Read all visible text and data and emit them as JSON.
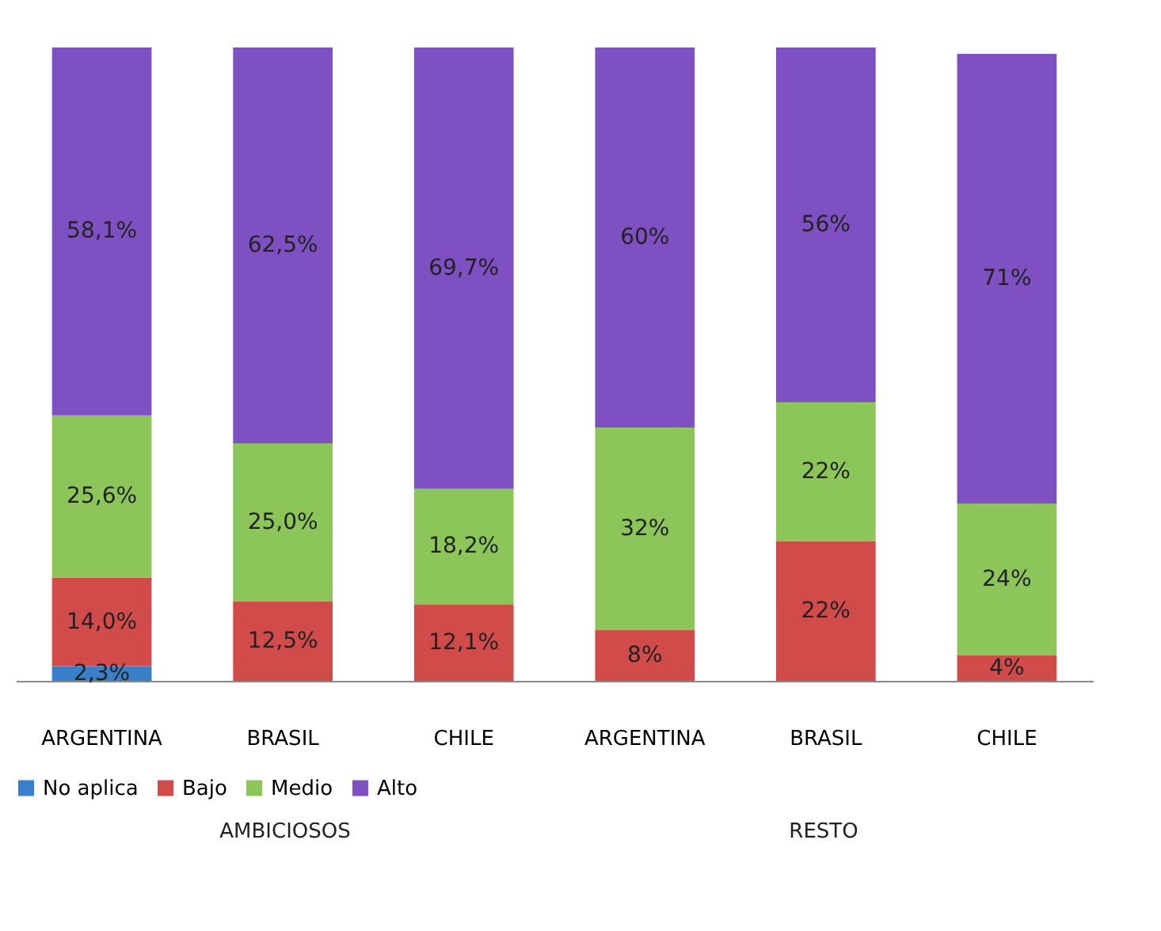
{
  "chart_data": {
    "type": "bar",
    "stacked": true,
    "grid": false,
    "legend": "bottom",
    "categories": [
      "ARGENTINA",
      "BRASIL",
      "CHILE",
      "ARGENTINA",
      "BRASIL",
      "CHILE"
    ],
    "annotations": [
      "AMBICIOSOS",
      "RESTO"
    ],
    "series": [
      {
        "name": "No aplica",
        "color": "#3a80c8",
        "values": [
          2.3,
          null,
          null,
          null,
          null,
          null
        ],
        "value_labels": [
          "2,3%",
          null,
          null,
          null,
          null,
          null
        ]
      },
      {
        "name": "Bajo",
        "color": "#d24b4b",
        "values": [
          14.0,
          12.5,
          12.1,
          8,
          22,
          4
        ],
        "value_labels": [
          "14,0%",
          "12,5%",
          "12,1%",
          "8%",
          "22%",
          "4%"
        ]
      },
      {
        "name": "Medio",
        "color": "#8cc65a",
        "values": [
          25.6,
          25.0,
          18.2,
          32,
          22,
          24
        ],
        "value_labels": [
          "25,6%",
          "25,0%",
          "18,2%",
          "32%",
          "22%",
          "24%"
        ]
      },
      {
        "name": "Alto",
        "color": "#7e50c2",
        "values": [
          58.1,
          62.5,
          69.7,
          60,
          56,
          71
        ],
        "value_labels": [
          "58,1%",
          "62,5%",
          "69,7%",
          "60%",
          "56%",
          "71%"
        ]
      }
    ]
  }
}
